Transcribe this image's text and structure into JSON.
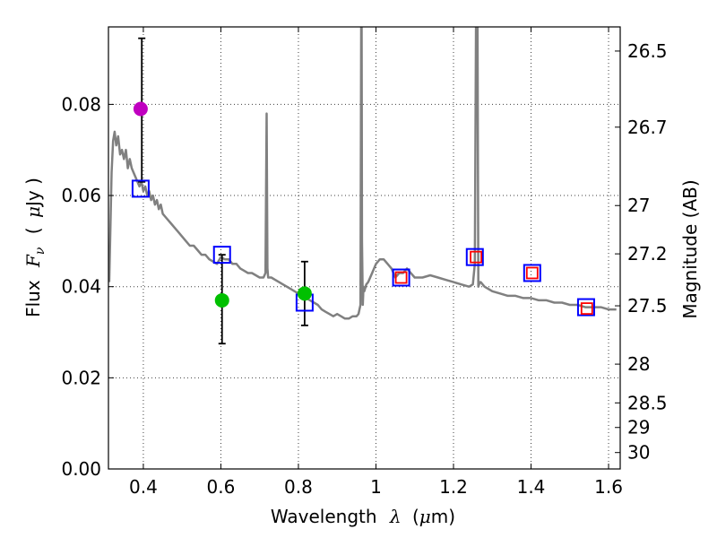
{
  "chart_data": {
    "type": "line",
    "title": "",
    "xlabel": "Wavelength",
    "xlabel_symbol": "λ",
    "xlabel_unit_open": "(",
    "xlabel_unit_mu": "μ",
    "xlabel_unit_rest": "m)",
    "ylabel": "Flux",
    "ylabel_symbol": "F",
    "ylabel_subscript": "ν",
    "ylabel_unit_open": "(",
    "ylabel_unit_mu": "μ",
    "ylabel_unit_rest": "Jy )",
    "y2label": "Magnitude (AB)",
    "xlim": [
      0.31,
      1.63
    ],
    "ylim": [
      0.0,
      0.097
    ],
    "grid": true,
    "xticks": [
      {
        "value": 0.4,
        "label": "0.4"
      },
      {
        "value": 0.6,
        "label": "0.6"
      },
      {
        "value": 0.8,
        "label": "0.8"
      },
      {
        "value": 1.0,
        "label": "1"
      },
      {
        "value": 1.2,
        "label": "1.2"
      },
      {
        "value": 1.4,
        "label": "1.4"
      },
      {
        "value": 1.6,
        "label": "1.6"
      }
    ],
    "yticks": [
      {
        "value": 0.0,
        "label": "0.00"
      },
      {
        "value": 0.02,
        "label": "0.02"
      },
      {
        "value": 0.04,
        "label": "0.04"
      },
      {
        "value": 0.06,
        "label": "0.06"
      },
      {
        "value": 0.08,
        "label": "0.08"
      }
    ],
    "y2ticks": [
      {
        "flux": 0.0917,
        "label": "26.5"
      },
      {
        "flux": 0.075,
        "label": "26.7"
      },
      {
        "flux": 0.0578,
        "label": "27"
      },
      {
        "flux": 0.0472,
        "label": "27.2"
      },
      {
        "flux": 0.0358,
        "label": "27.5"
      },
      {
        "flux": 0.023,
        "label": "28"
      },
      {
        "flux": 0.0145,
        "label": "28.5"
      },
      {
        "flux": 0.0091,
        "label": "29"
      },
      {
        "flux": 0.0036,
        "label": "30"
      }
    ],
    "series": [
      {
        "name": "SED model",
        "kind": "line",
        "color": "#808080",
        "x": [
          0.312,
          0.318,
          0.322,
          0.326,
          0.33,
          0.335,
          0.34,
          0.345,
          0.35,
          0.355,
          0.36,
          0.365,
          0.37,
          0.375,
          0.38,
          0.385,
          0.39,
          0.395,
          0.4,
          0.405,
          0.41,
          0.415,
          0.42,
          0.425,
          0.43,
          0.435,
          0.44,
          0.445,
          0.45,
          0.46,
          0.47,
          0.48,
          0.49,
          0.5,
          0.51,
          0.52,
          0.53,
          0.54,
          0.55,
          0.56,
          0.57,
          0.58,
          0.59,
          0.6,
          0.61,
          0.62,
          0.63,
          0.64,
          0.65,
          0.66,
          0.67,
          0.68,
          0.69,
          0.7,
          0.71,
          0.715,
          0.718,
          0.72,
          0.722,
          0.725,
          0.73,
          0.74,
          0.75,
          0.76,
          0.77,
          0.78,
          0.79,
          0.8,
          0.81,
          0.82,
          0.83,
          0.84,
          0.85,
          0.86,
          0.87,
          0.88,
          0.89,
          0.9,
          0.91,
          0.92,
          0.93,
          0.94,
          0.95,
          0.955,
          0.96,
          0.962,
          0.963,
          0.964,
          0.966,
          0.968,
          0.97,
          0.975,
          0.98,
          0.99,
          1.0,
          1.01,
          1.02,
          1.03,
          1.04,
          1.05,
          1.06,
          1.07,
          1.08,
          1.09,
          1.1,
          1.12,
          1.14,
          1.16,
          1.18,
          1.2,
          1.22,
          1.24,
          1.25,
          1.255,
          1.258,
          1.26,
          1.262,
          1.264,
          1.268,
          1.27,
          1.28,
          1.3,
          1.32,
          1.34,
          1.36,
          1.38,
          1.4,
          1.42,
          1.44,
          1.46,
          1.48,
          1.5,
          1.52,
          1.54,
          1.56,
          1.58,
          1.6,
          1.62
        ],
        "y": [
          0.041,
          0.065,
          0.072,
          0.074,
          0.071,
          0.073,
          0.069,
          0.07,
          0.068,
          0.07,
          0.066,
          0.068,
          0.066,
          0.065,
          0.064,
          0.063,
          0.062,
          0.063,
          0.061,
          0.062,
          0.06,
          0.061,
          0.059,
          0.06,
          0.058,
          0.059,
          0.057,
          0.058,
          0.056,
          0.055,
          0.054,
          0.053,
          0.052,
          0.051,
          0.05,
          0.049,
          0.049,
          0.048,
          0.047,
          0.047,
          0.046,
          0.0455,
          0.045,
          0.0465,
          0.046,
          0.046,
          0.045,
          0.045,
          0.044,
          0.0435,
          0.043,
          0.043,
          0.0425,
          0.042,
          0.042,
          0.043,
          0.078,
          0.044,
          0.042,
          0.042,
          0.042,
          0.0415,
          0.041,
          0.0405,
          0.04,
          0.0395,
          0.039,
          0.0385,
          0.038,
          0.0375,
          0.037,
          0.0365,
          0.036,
          0.035,
          0.0345,
          0.034,
          0.0335,
          0.034,
          0.0335,
          0.033,
          0.033,
          0.0335,
          0.0335,
          0.034,
          0.036,
          0.097,
          0.097,
          0.05,
          0.036,
          0.04,
          0.039,
          0.0405,
          0.041,
          0.043,
          0.045,
          0.046,
          0.046,
          0.045,
          0.044,
          0.042,
          0.043,
          0.043,
          0.044,
          0.043,
          0.042,
          0.042,
          0.0425,
          0.042,
          0.0415,
          0.041,
          0.0405,
          0.04,
          0.0405,
          0.045,
          0.097,
          0.097,
          0.097,
          0.04,
          0.041,
          0.041,
          0.04,
          0.039,
          0.0385,
          0.038,
          0.038,
          0.0375,
          0.0375,
          0.037,
          0.037,
          0.0365,
          0.0365,
          0.036,
          0.036,
          0.0355,
          0.0355,
          0.0355,
          0.035,
          0.035
        ]
      },
      {
        "name": "model photometry",
        "kind": "open-square",
        "color": "#0000ff",
        "x": [
          0.393,
          0.603,
          0.816,
          1.065,
          1.255,
          1.403,
          1.542
        ],
        "y": [
          0.0615,
          0.047,
          0.0365,
          0.042,
          0.0465,
          0.043,
          0.0355
        ]
      },
      {
        "name": "observed flux (HST)",
        "kind": "small-open-square",
        "color": "#ff0000",
        "x": [
          1.065,
          1.258,
          1.403,
          1.544
        ],
        "y": [
          0.042,
          0.0465,
          0.043,
          0.0352
        ]
      },
      {
        "name": "observed flux (magenta)",
        "kind": "filled-circle",
        "color": "#c000c0",
        "x": [
          0.393
        ],
        "y": [
          0.079
        ]
      },
      {
        "name": "observed flux (green)",
        "kind": "filled-circle",
        "color": "#00c000",
        "x": [
          0.603,
          0.816
        ],
        "y": [
          0.037,
          0.0385
        ]
      },
      {
        "name": "error bars",
        "kind": "errorbar",
        "color": "#000000",
        "x": [
          0.396,
          0.603,
          0.816
        ],
        "ylow": [
          0.063,
          0.0275,
          0.0315
        ],
        "yhigh": [
          0.0945,
          0.047,
          0.0455
        ]
      }
    ]
  }
}
